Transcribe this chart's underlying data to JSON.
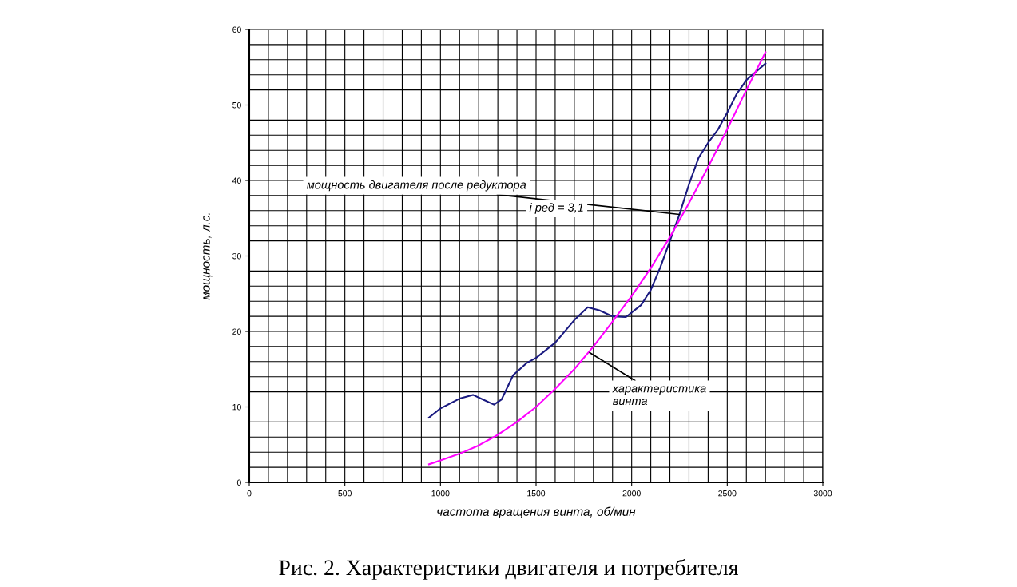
{
  "chart_data": {
    "type": "line",
    "xlabel": "частота вращения винта, об/мин",
    "ylabel": "мощность, л.с.",
    "xlim": [
      0,
      3000
    ],
    "xticks": [
      0,
      500,
      1000,
      1500,
      2000,
      2500,
      3000
    ],
    "ylim": [
      0,
      60
    ],
    "yticks": [
      0,
      10,
      20,
      30,
      40,
      50,
      60
    ],
    "grid": true,
    "marker": "none",
    "line_style": "solid",
    "series": [
      {
        "color": "#1a1a80",
        "x": [
          940,
          1000,
          1100,
          1170,
          1220,
          1280,
          1320,
          1380,
          1450,
          1500,
          1600,
          1700,
          1770,
          1830,
          1900,
          1970,
          2050,
          2100,
          2150,
          2200,
          2250,
          2300,
          2350,
          2400,
          2450,
          2500,
          2550,
          2600,
          2700
        ],
        "values": [
          8.6,
          9.8,
          11.1,
          11.6,
          11.0,
          10.3,
          11.0,
          14.2,
          15.8,
          16.5,
          18.5,
          21.5,
          23.2,
          22.8,
          22.0,
          21.9,
          23.5,
          25.5,
          28.5,
          32,
          35.5,
          39.5,
          43,
          45,
          46.7,
          49,
          51.5,
          53.3,
          55.5
        ]
      },
      {
        "color": "#ff00ff",
        "x": [
          940,
          1000,
          1100,
          1200,
          1300,
          1400,
          1500,
          1600,
          1700,
          1800,
          1900,
          2000,
          2100,
          2200,
          2300,
          2400,
          2500,
          2600,
          2700
        ],
        "values": [
          2.4,
          2.9,
          3.8,
          4.9,
          6.3,
          8,
          10,
          12.4,
          15,
          18,
          21.3,
          24.7,
          28.4,
          32.5,
          37,
          41.8,
          46.8,
          52,
          57
        ]
      }
    ],
    "annotations": [
      {
        "text": "мощность двигателя после редуктора",
        "x": 2250,
        "y": 35.5
      },
      "i ред = 3,1",
      {
        "text": "характеристика\nвинта",
        "x": 1780,
        "y": 17.2
      },
      "Рис. 2. Характеристики двигателя и потребителя"
    ]
  }
}
